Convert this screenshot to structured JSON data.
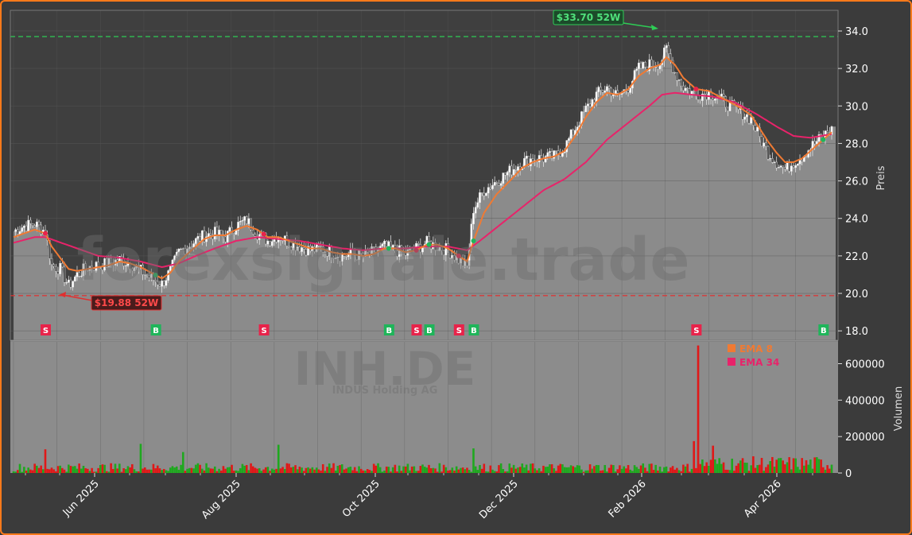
{
  "chart_data": {
    "type": "line",
    "ticker": "INH.DE",
    "company": "INDUS Holding AG",
    "watermark": "forexsignale.trade",
    "ylabel": "Preis",
    "volume_label": "Volumen",
    "ylim": [
      17.5,
      35.1
    ],
    "yticks": [
      "18.0",
      "20.0",
      "22.0",
      "24.0",
      "26.0",
      "28.0",
      "30.0",
      "32.0",
      "34.0"
    ],
    "volume_ylim": [
      0,
      720000
    ],
    "volume_ticks": [
      "0",
      "200000",
      "400000",
      "600000"
    ],
    "x_ticks": [
      "Jun 2025",
      "Aug 2025",
      "Oct 2025",
      "Dec 2025",
      "Feb 2026",
      "Apr 2026"
    ],
    "legend": [
      {
        "name": "EMA 8",
        "color": "#f07a33"
      },
      {
        "name": "EMA 34",
        "color": "#e8236a"
      }
    ],
    "high_52w": {
      "label": "$33.70 52W",
      "value": 33.7,
      "color": "#2ecc55"
    },
    "low_52w": {
      "label": "$19.88 52W",
      "value": 19.88,
      "color": "#e03030"
    },
    "close_keypoints": [
      [
        0,
        23.3
      ],
      [
        5,
        23.6
      ],
      [
        10,
        23.7
      ],
      [
        15,
        23.3
      ],
      [
        18,
        21.5
      ],
      [
        22,
        21.3
      ],
      [
        26,
        20.4
      ],
      [
        30,
        21.0
      ],
      [
        35,
        21.4
      ],
      [
        40,
        21.5
      ],
      [
        45,
        21.6
      ],
      [
        50,
        21.8
      ],
      [
        55,
        21.6
      ],
      [
        60,
        21.2
      ],
      [
        65,
        20.8
      ],
      [
        70,
        20.5
      ],
      [
        74,
        21.2
      ],
      [
        78,
        22.2
      ],
      [
        82,
        22.5
      ],
      [
        86,
        22.8
      ],
      [
        90,
        23.1
      ],
      [
        95,
        23.2
      ],
      [
        100,
        23.0
      ],
      [
        105,
        23.6
      ],
      [
        110,
        23.9
      ],
      [
        115,
        23.2
      ],
      [
        120,
        22.8
      ],
      [
        125,
        23.1
      ],
      [
        130,
        22.7
      ],
      [
        135,
        22.5
      ],
      [
        140,
        22.3
      ],
      [
        145,
        22.4
      ],
      [
        150,
        22.2
      ],
      [
        155,
        22.0
      ],
      [
        160,
        22.1
      ],
      [
        165,
        22.0
      ],
      [
        170,
        22.2
      ],
      [
        175,
        22.5
      ],
      [
        180,
        22.3
      ],
      [
        185,
        22.1
      ],
      [
        190,
        22.4
      ],
      [
        195,
        22.7
      ],
      [
        200,
        22.5
      ],
      [
        205,
        22.3
      ],
      [
        210,
        21.8
      ],
      [
        214,
        21.4
      ],
      [
        217,
        24.5
      ],
      [
        222,
        25.5
      ],
      [
        228,
        26.0
      ],
      [
        235,
        26.6
      ],
      [
        240,
        27.0
      ],
      [
        245,
        27.2
      ],
      [
        250,
        27.2
      ],
      [
        255,
        27.3
      ],
      [
        260,
        27.8
      ],
      [
        265,
        28.8
      ],
      [
        270,
        29.8
      ],
      [
        275,
        30.6
      ],
      [
        280,
        31.0
      ],
      [
        285,
        30.5
      ],
      [
        290,
        31.0
      ],
      [
        295,
        32.0
      ],
      [
        300,
        32.2
      ],
      [
        305,
        32.3
      ],
      [
        308,
        33.0
      ],
      [
        312,
        31.8
      ],
      [
        316,
        31.0
      ],
      [
        322,
        30.6
      ],
      [
        328,
        30.7
      ],
      [
        333,
        30.4
      ],
      [
        338,
        30.0
      ],
      [
        343,
        29.7
      ],
      [
        348,
        29.3
      ],
      [
        352,
        28.3
      ],
      [
        356,
        27.5
      ],
      [
        360,
        27.0
      ],
      [
        364,
        26.6
      ],
      [
        368,
        27.0
      ],
      [
        372,
        27.3
      ],
      [
        376,
        27.8
      ],
      [
        380,
        28.2
      ],
      [
        384,
        28.6
      ],
      [
        386,
        28.7
      ]
    ],
    "ema8_keypoints": [
      [
        0,
        23.0
      ],
      [
        5,
        23.2
      ],
      [
        10,
        23.4
      ],
      [
        15,
        23.2
      ],
      [
        18,
        22.5
      ],
      [
        22,
        21.9
      ],
      [
        26,
        21.3
      ],
      [
        30,
        21.2
      ],
      [
        35,
        21.3
      ],
      [
        40,
        21.4
      ],
      [
        45,
        21.5
      ],
      [
        50,
        21.7
      ],
      [
        55,
        21.6
      ],
      [
        60,
        21.4
      ],
      [
        65,
        21.1
      ],
      [
        70,
        20.8
      ],
      [
        74,
        21.1
      ],
      [
        78,
        21.7
      ],
      [
        82,
        22.1
      ],
      [
        86,
        22.5
      ],
      [
        90,
        22.9
      ],
      [
        95,
        23.1
      ],
      [
        100,
        23.1
      ],
      [
        105,
        23.4
      ],
      [
        110,
        23.6
      ],
      [
        115,
        23.4
      ],
      [
        120,
        23.0
      ],
      [
        125,
        23.0
      ],
      [
        130,
        22.8
      ],
      [
        135,
        22.6
      ],
      [
        140,
        22.4
      ],
      [
        145,
        22.4
      ],
      [
        150,
        22.2
      ],
      [
        155,
        22.1
      ],
      [
        160,
        22.1
      ],
      [
        165,
        22.0
      ],
      [
        170,
        22.1
      ],
      [
        175,
        22.4
      ],
      [
        180,
        22.4
      ],
      [
        185,
        22.2
      ],
      [
        190,
        22.3
      ],
      [
        195,
        22.6
      ],
      [
        200,
        22.6
      ],
      [
        205,
        22.4
      ],
      [
        210,
        22.0
      ],
      [
        214,
        21.7
      ],
      [
        217,
        22.8
      ],
      [
        222,
        24.3
      ],
      [
        228,
        25.3
      ],
      [
        235,
        26.1
      ],
      [
        240,
        26.7
      ],
      [
        245,
        27.0
      ],
      [
        250,
        27.2
      ],
      [
        255,
        27.3
      ],
      [
        260,
        27.6
      ],
      [
        265,
        28.4
      ],
      [
        270,
        29.4
      ],
      [
        275,
        30.2
      ],
      [
        280,
        30.7
      ],
      [
        285,
        30.6
      ],
      [
        290,
        30.9
      ],
      [
        295,
        31.6
      ],
      [
        300,
        32.0
      ],
      [
        305,
        32.2
      ],
      [
        308,
        32.6
      ],
      [
        312,
        32.2
      ],
      [
        316,
        31.5
      ],
      [
        322,
        30.9
      ],
      [
        328,
        30.8
      ],
      [
        333,
        30.5
      ],
      [
        338,
        30.2
      ],
      [
        343,
        29.9
      ],
      [
        348,
        29.5
      ],
      [
        352,
        28.8
      ],
      [
        356,
        28.1
      ],
      [
        360,
        27.5
      ],
      [
        364,
        27.0
      ],
      [
        368,
        27.0
      ],
      [
        372,
        27.2
      ],
      [
        376,
        27.6
      ],
      [
        380,
        28.0
      ],
      [
        384,
        28.4
      ],
      [
        386,
        28.6
      ]
    ],
    "ema34_keypoints": [
      [
        0,
        22.7
      ],
      [
        10,
        23.0
      ],
      [
        15,
        23.0
      ],
      [
        20,
        22.8
      ],
      [
        30,
        22.4
      ],
      [
        40,
        22.0
      ],
      [
        50,
        21.9
      ],
      [
        60,
        21.7
      ],
      [
        70,
        21.4
      ],
      [
        78,
        21.6
      ],
      [
        86,
        22.0
      ],
      [
        95,
        22.4
      ],
      [
        105,
        22.8
      ],
      [
        115,
        23.0
      ],
      [
        125,
        22.9
      ],
      [
        135,
        22.8
      ],
      [
        145,
        22.6
      ],
      [
        155,
        22.4
      ],
      [
        165,
        22.3
      ],
      [
        175,
        22.4
      ],
      [
        185,
        22.4
      ],
      [
        195,
        22.5
      ],
      [
        205,
        22.5
      ],
      [
        214,
        22.3
      ],
      [
        220,
        22.8
      ],
      [
        230,
        23.7
      ],
      [
        240,
        24.6
      ],
      [
        250,
        25.5
      ],
      [
        260,
        26.1
      ],
      [
        270,
        27.0
      ],
      [
        280,
        28.2
      ],
      [
        290,
        29.1
      ],
      [
        300,
        30.0
      ],
      [
        306,
        30.6
      ],
      [
        312,
        30.7
      ],
      [
        320,
        30.6
      ],
      [
        330,
        30.5
      ],
      [
        340,
        30.2
      ],
      [
        350,
        29.6
      ],
      [
        360,
        28.9
      ],
      [
        368,
        28.4
      ],
      [
        376,
        28.3
      ],
      [
        386,
        28.5
      ]
    ],
    "signals": [
      {
        "type": "S",
        "day": 15
      },
      {
        "type": "B",
        "day": 67
      },
      {
        "type": "S",
        "day": 118
      },
      {
        "type": "B",
        "day": 177
      },
      {
        "type": "S",
        "day": 190
      },
      {
        "type": "B",
        "day": 196
      },
      {
        "type": "S",
        "day": 210
      },
      {
        "type": "B",
        "day": 217
      },
      {
        "type": "S",
        "day": 322
      },
      {
        "type": "B",
        "day": 382
      }
    ],
    "volume_spikes": [
      [
        323,
        700000
      ],
      [
        321,
        175000
      ],
      [
        60,
        160000
      ],
      [
        125,
        155000
      ],
      [
        217,
        135000
      ],
      [
        15,
        130000
      ],
      [
        80,
        115000
      ],
      [
        330,
        150000
      ]
    ],
    "volume_base": 30000,
    "colors": {
      "up": "#1fa81f",
      "down": "#e01818",
      "area": "#8b8b8b",
      "ema8": "#f07a33",
      "ema34": "#e8236a",
      "buy": "#1fb55a",
      "sell": "#e8234a"
    }
  }
}
